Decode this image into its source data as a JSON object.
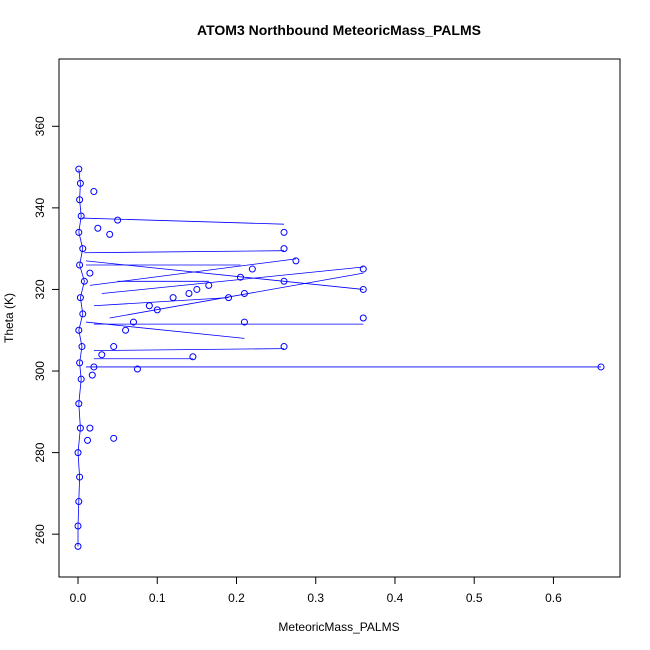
{
  "chart_data": {
    "type": "scatter",
    "title": "ATOM3 Northbound MeteoricMass_PALMS",
    "xlabel": "MeteoricMass_PALMS",
    "ylabel": "Theta (K)",
    "xlim": [
      -0.024,
      0.684
    ],
    "ylim": [
      249.5,
      376.5
    ],
    "x_ticks": [
      0.0,
      0.1,
      0.2,
      0.3,
      0.4,
      0.5,
      0.6
    ],
    "x_tick_labels": [
      "0.0",
      "0.1",
      "0.2",
      "0.3",
      "0.4",
      "0.5",
      "0.6"
    ],
    "y_ticks": [
      260,
      280,
      300,
      320,
      340,
      360
    ],
    "y_tick_labels": [
      "260",
      "280",
      "300",
      "320",
      "340",
      "360"
    ],
    "grid": false,
    "legend": false,
    "style": "points connected by lines",
    "color": "#0000ff",
    "points": [
      [
        0.0,
        257.0
      ],
      [
        0.0,
        262.0
      ],
      [
        0.001,
        268.0
      ],
      [
        0.002,
        274.0
      ],
      [
        0.0,
        280.0
      ],
      [
        0.003,
        286.0
      ],
      [
        0.001,
        292.0
      ],
      [
        0.004,
        298.0
      ],
      [
        0.002,
        302.0
      ],
      [
        0.005,
        306.0
      ],
      [
        0.001,
        310.0
      ],
      [
        0.006,
        314.0
      ],
      [
        0.003,
        318.0
      ],
      [
        0.008,
        322.0
      ],
      [
        0.002,
        326.0
      ],
      [
        0.006,
        330.0
      ],
      [
        0.001,
        334.0
      ],
      [
        0.004,
        338.0
      ],
      [
        0.002,
        342.0
      ],
      [
        0.003,
        346.0
      ],
      [
        0.001,
        349.5
      ],
      [
        0.012,
        283.0
      ],
      [
        0.045,
        283.5
      ],
      [
        0.015,
        286.0
      ],
      [
        0.018,
        299.0
      ],
      [
        0.02,
        301.0
      ],
      [
        0.03,
        304.0
      ],
      [
        0.045,
        306.0
      ],
      [
        0.06,
        310.0
      ],
      [
        0.07,
        312.0
      ],
      [
        0.075,
        300.5
      ],
      [
        0.09,
        316.0
      ],
      [
        0.1,
        315.0
      ],
      [
        0.12,
        318.0
      ],
      [
        0.14,
        319.0
      ],
      [
        0.145,
        303.5
      ],
      [
        0.15,
        320.0
      ],
      [
        0.165,
        321.0
      ],
      [
        0.19,
        318.0
      ],
      [
        0.205,
        323.0
      ],
      [
        0.21,
        319.0
      ],
      [
        0.21,
        312.0
      ],
      [
        0.22,
        325.0
      ],
      [
        0.26,
        330.0
      ],
      [
        0.26,
        334.0
      ],
      [
        0.26,
        306.0
      ],
      [
        0.26,
        322.0
      ],
      [
        0.275,
        327.0
      ],
      [
        0.36,
        325.0
      ],
      [
        0.36,
        320.0
      ],
      [
        0.36,
        313.0
      ],
      [
        0.025,
        335.0
      ],
      [
        0.05,
        337.0
      ],
      [
        0.04,
        333.5
      ],
      [
        0.02,
        344.0
      ],
      [
        0.015,
        324.0
      ],
      [
        0.66,
        301.0
      ]
    ],
    "connections": [
      [
        [
          0.005,
          337.5
        ],
        [
          0.26,
          336.0
        ]
      ],
      [
        [
          0.008,
          329.0
        ],
        [
          0.26,
          329.5
        ]
      ],
      [
        [
          0.01,
          327.0
        ],
        [
          0.36,
          320.0
        ]
      ],
      [
        [
          0.03,
          319.0
        ],
        [
          0.36,
          325.5
        ]
      ],
      [
        [
          0.04,
          313.0
        ],
        [
          0.36,
          324.0
        ]
      ],
      [
        [
          0.02,
          311.5
        ],
        [
          0.36,
          311.5
        ]
      ],
      [
        [
          0.02,
          305.0
        ],
        [
          0.26,
          305.5
        ]
      ],
      [
        [
          0.01,
          301.0
        ],
        [
          0.66,
          301.0
        ]
      ],
      [
        [
          0.02,
          303.0
        ],
        [
          0.145,
          303.0
        ]
      ],
      [
        [
          0.01,
          312.0
        ],
        [
          0.21,
          308.0
        ]
      ],
      [
        [
          0.015,
          321.0
        ],
        [
          0.275,
          327.5
        ]
      ],
      [
        [
          0.01,
          326.0
        ],
        [
          0.205,
          326.0
        ]
      ],
      [
        [
          0.05,
          322.0
        ],
        [
          0.165,
          322.0
        ]
      ],
      [
        [
          0.02,
          316.0
        ],
        [
          0.19,
          318.0
        ]
      ]
    ]
  }
}
